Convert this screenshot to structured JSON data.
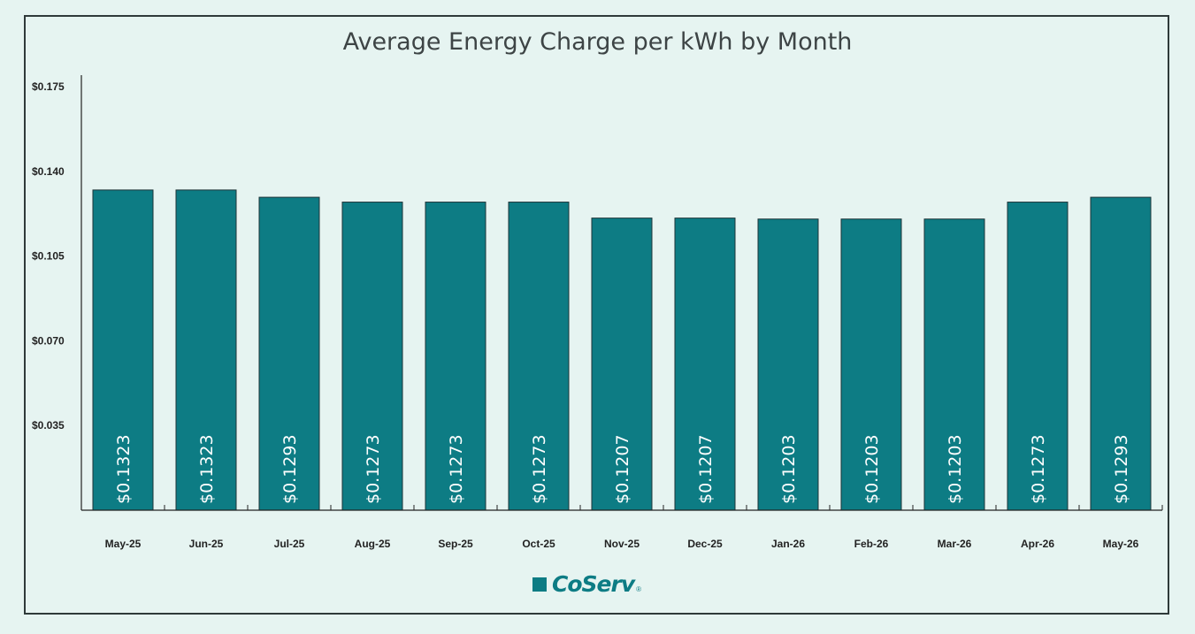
{
  "chart_data": {
    "type": "bar",
    "title": "Average Energy Charge per kWh by Month",
    "categories": [
      "May-25",
      "Jun-25",
      "Jul-25",
      "Aug-25",
      "Sep-25",
      "Oct-25",
      "Nov-25",
      "Dec-25",
      "Jan-26",
      "Feb-26",
      "Mar-26",
      "Apr-26",
      "May-26"
    ],
    "values": [
      0.1323,
      0.1323,
      0.1293,
      0.1273,
      0.1273,
      0.1273,
      0.1207,
      0.1207,
      0.1203,
      0.1203,
      0.1203,
      0.1273,
      0.1293
    ],
    "data_labels": [
      "$0.1323",
      "$0.1323",
      "$0.1293",
      "$0.1273",
      "$0.1273",
      "$0.1273",
      "$0.1207",
      "$0.1207",
      "$0.1203",
      "$0.1203",
      "$0.1203",
      "$0.1273",
      "$0.1293"
    ],
    "y_ticks": [
      0.035,
      0.07,
      0.105,
      0.14,
      0.175
    ],
    "y_tick_labels": [
      "$0.035",
      "$0.070",
      "$0.105",
      "$0.140",
      "$0.175"
    ],
    "ylim": [
      0,
      0.175
    ],
    "xlabel": "",
    "ylabel": "",
    "grid": false,
    "bar_color": "#0d7c84",
    "label_color": "#ffffff"
  },
  "logo": {
    "text": "CoServ",
    "mark": "®",
    "color": "#0d7c84"
  }
}
